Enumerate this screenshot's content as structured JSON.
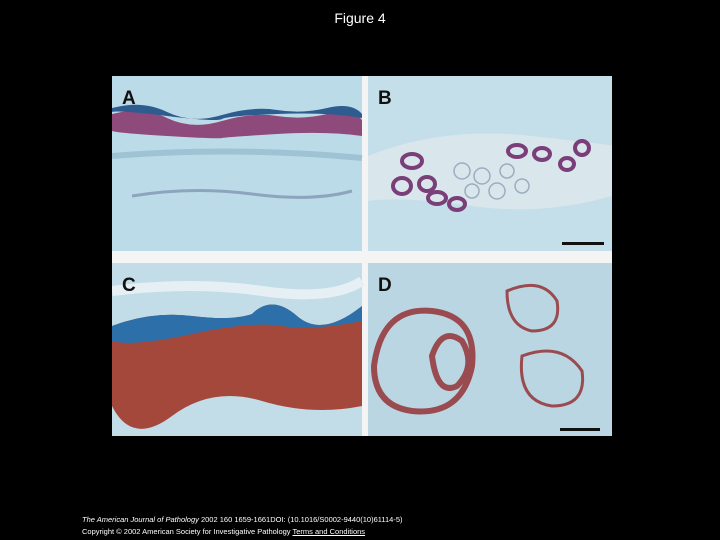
{
  "header": {
    "title": "Figure 4"
  },
  "figure": {
    "panels": [
      {
        "label": "A"
      },
      {
        "label": "B"
      },
      {
        "label": "C"
      },
      {
        "label": "D"
      }
    ]
  },
  "footer": {
    "journal": "The American Journal of Pathology",
    "citation": "2002 160 1659-1661DOI: (10.1016/S0002-9440(10)61114-5)",
    "copyright": "Copyright © 2002 American Society for Investigative Pathology",
    "link": "Terms and Conditions"
  }
}
